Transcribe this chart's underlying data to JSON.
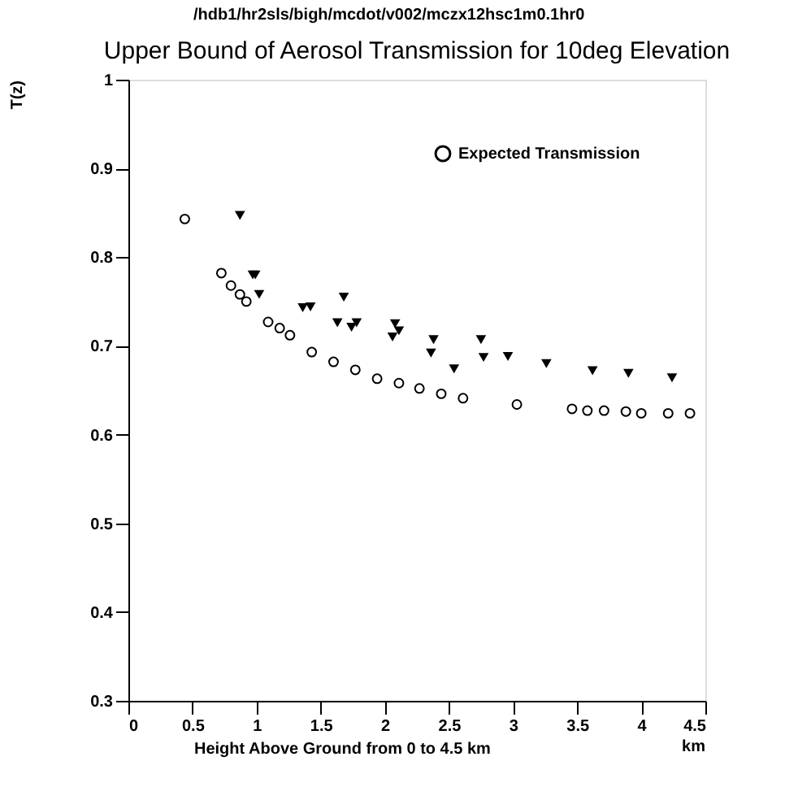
{
  "chart_data": {
    "type": "scatter",
    "title": "Upper Bound of Aerosol Transmission for 10deg Elevation",
    "subtitle": "/hdb1/hr2sls/bigh/mcdot/v002/mczx12hsc1m0.1hr0",
    "xlabel": "Height Above Ground from 0 to 4.5 km",
    "ylabel": "T(z)",
    "annotations": [
      "km"
    ],
    "xlim": [
      0,
      4.5
    ],
    "xticks": [
      0,
      0.5,
      1,
      1.5,
      2,
      2.5,
      3,
      3.5,
      4,
      4.5
    ],
    "ylim": [
      0.3,
      1
    ],
    "yticks": [
      0.3,
      0.4,
      0.5,
      0.6,
      0.7,
      0.8,
      0.9,
      1
    ],
    "grid": false,
    "legend": "top right",
    "series": [
      {
        "name": "Expected Transmission",
        "color": "#000000",
        "marker": "circle",
        "x": [
          0.44,
          0.725,
          0.8,
          0.87,
          0.92,
          1.09,
          1.18,
          1.26,
          1.43,
          1.6,
          1.77,
          1.94,
          2.11,
          2.27,
          2.44,
          2.61,
          3.03,
          3.46,
          3.58,
          3.71,
          3.88,
          4.0,
          4.21,
          4.38
        ],
        "values": [
          0.843,
          0.782,
          0.768,
          0.758,
          0.75,
          0.727,
          0.72,
          0.712,
          0.693,
          0.682,
          0.673,
          0.663,
          0.658,
          0.652,
          0.646,
          0.641,
          0.634,
          0.629,
          0.627,
          0.627,
          0.626,
          0.624,
          0.624,
          0.624
        ]
      },
      {
        "color": "#000000",
        "marker": "triangle",
        "x": [
          0.87,
          0.97,
          0.99,
          1.02,
          1.36,
          1.42,
          1.63,
          1.68,
          1.74,
          1.78,
          2.06,
          2.08,
          2.11,
          2.36,
          2.38,
          2.54,
          2.75,
          2.77,
          2.96,
          3.26,
          3.62,
          3.9,
          4.24
        ],
        "values": [
          0.847,
          0.78,
          0.78,
          0.758,
          0.743,
          0.744,
          0.726,
          0.755,
          0.721,
          0.726,
          0.71,
          0.725,
          0.717,
          0.692,
          0.707,
          0.674,
          0.707,
          0.687,
          0.688,
          0.68,
          0.672,
          0.669,
          0.664
        ]
      }
    ]
  }
}
